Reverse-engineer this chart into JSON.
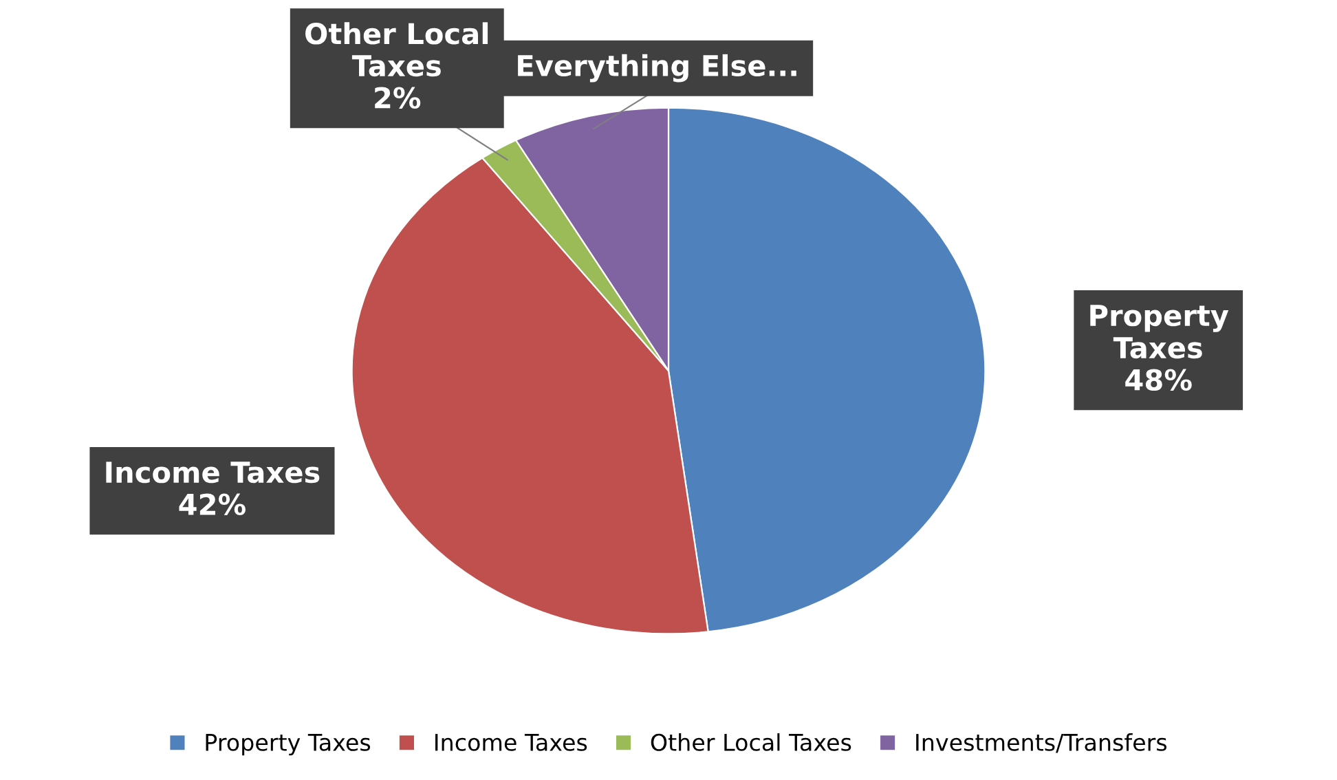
{
  "chart_data": {
    "type": "pie",
    "categories": [
      "Property Taxes",
      "Income Taxes",
      "Other Local Taxes",
      "Investments/Transfers"
    ],
    "values": [
      48,
      42,
      2,
      8
    ],
    "colors": [
      "#4f81bd",
      "#c0504d",
      "#9bbb59",
      "#8064a2"
    ],
    "value_labels": [
      "Property\nTaxes\n48%",
      "Income Taxes\n42%",
      "Other Local\nTaxes\n2%",
      "Everything Else..."
    ],
    "legend": "bottom"
  }
}
